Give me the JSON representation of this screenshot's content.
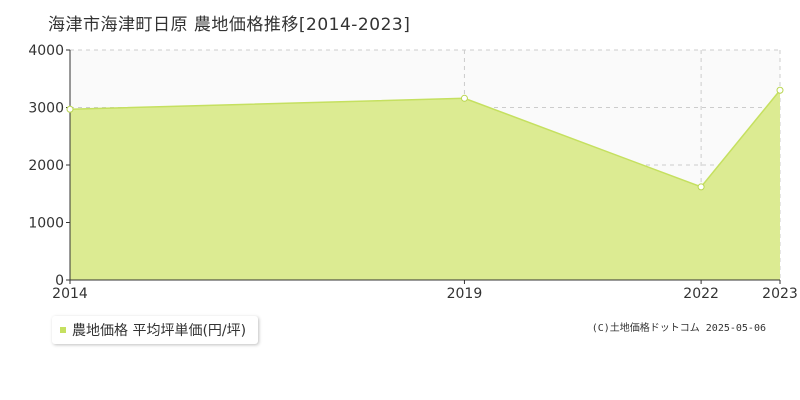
{
  "chart_data": {
    "type": "area",
    "title": "海津市海津町日原 農地価格推移[2014-2023]",
    "xlabel": "",
    "ylabel": "",
    "x": [
      2014,
      2019,
      2022,
      2023
    ],
    "series": [
      {
        "name": "農地価格 平均坪単価(円/坪)",
        "values": [
          2970,
          3160,
          1620,
          3300
        ]
      }
    ],
    "xticks": [
      "2014",
      "2019",
      "2022",
      "2023"
    ],
    "yticks": [
      0,
      1000,
      2000,
      3000,
      4000
    ],
    "xlim": [
      2014,
      2023
    ],
    "ylim": [
      0,
      4000
    ],
    "grid": true,
    "legend_position": "bottom-left",
    "colors": {
      "fill": "#dceb92",
      "line": "#c5e060",
      "marker_fill": "#ffffff",
      "marker_stroke": "#b9d650",
      "grid": "#cccccc",
      "axis": "#333333",
      "plot_bg": "#fafafa"
    }
  },
  "footer": {
    "copyright": "(C)土地価格ドットコム 2025-05-06"
  }
}
